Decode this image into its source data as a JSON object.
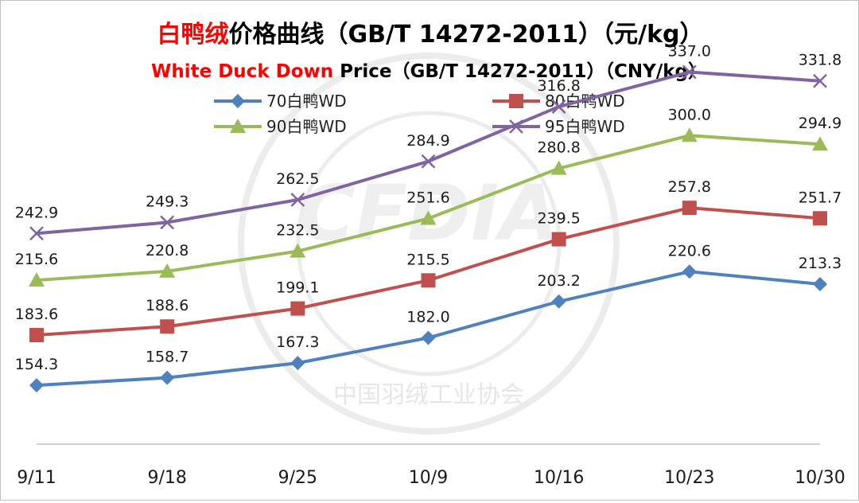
{
  "chart_data": {
    "type": "line",
    "title": {
      "cn_highlight": "白鸭绒",
      "cn_rest": "价格曲线（GB/T 14272-2011）（元/kg）",
      "en_highlight": "White Duck Down",
      "en_rest": " Price（GB/T 14272-2011）（CNY/kg）"
    },
    "watermark": "中国羽绒工业协会",
    "categories": [
      "9/11",
      "9/18",
      "9/25",
      "10/9",
      "10/16",
      "10/23",
      "10/30"
    ],
    "ylim": [
      120,
      360
    ],
    "xlabel": "",
    "ylabel": "",
    "grid": false,
    "legend_position": "top",
    "series": [
      {
        "name": "70白鸭WD",
        "color": "#4f81bd",
        "marker": "diamond",
        "values": [
          154.3,
          158.7,
          167.3,
          182.0,
          203.2,
          220.6,
          213.3
        ],
        "labels": [
          "154.3",
          "158.7",
          "167.3",
          "182.0",
          "203.2",
          "220.6",
          "213.3"
        ]
      },
      {
        "name": "80白鸭WD",
        "color": "#c0504d",
        "marker": "square",
        "values": [
          183.6,
          188.6,
          199.1,
          215.5,
          239.5,
          257.8,
          251.7
        ],
        "labels": [
          "183.6",
          "188.6",
          "199.1",
          "215.5",
          "239.5",
          "257.8",
          "251.7"
        ]
      },
      {
        "name": "90白鸭WD",
        "color": "#9bbb59",
        "marker": "triangle",
        "values": [
          215.6,
          220.8,
          232.5,
          251.6,
          280.8,
          300.0,
          294.9
        ],
        "labels": [
          "215.6",
          "220.8",
          "232.5",
          "251.6",
          "280.8",
          "300.0",
          "294.9"
        ]
      },
      {
        "name": "95白鸭WD",
        "color": "#8064a2",
        "marker": "x",
        "values": [
          242.9,
          249.3,
          262.5,
          284.9,
          316.8,
          337.0,
          331.8
        ],
        "labels": [
          "242.9",
          "249.3",
          "262.5",
          "284.9",
          "316.8",
          "337.0",
          "331.8"
        ]
      }
    ]
  },
  "colors": {
    "title_highlight": "#ff0000",
    "title_text": "#000000",
    "axis": "#bfbfbf",
    "watermark": "#e9e9e9"
  }
}
